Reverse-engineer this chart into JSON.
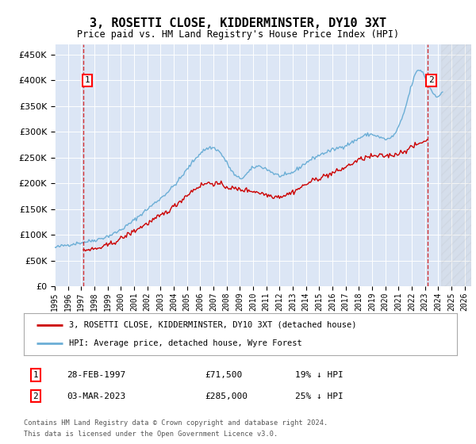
{
  "title": "3, ROSETTI CLOSE, KIDDERMINSTER, DY10 3XT",
  "subtitle": "Price paid vs. HM Land Registry's House Price Index (HPI)",
  "ylim": [
    0,
    470000
  ],
  "yticks": [
    0,
    50000,
    100000,
    150000,
    200000,
    250000,
    300000,
    350000,
    400000,
    450000
  ],
  "xlim_start": 1995.0,
  "xlim_end": 2026.5,
  "background_color": "#dce6f5",
  "hpi_color": "#6baed6",
  "price_color": "#cc0000",
  "dashed_line_color": "#cc0000",
  "transaction1_x": 1997.167,
  "transaction1_y": 71500,
  "transaction1_label": "1",
  "transaction1_date": "28-FEB-1997",
  "transaction1_price": "£71,500",
  "transaction1_hpi": "19% ↓ HPI",
  "transaction2_x": 2023.17,
  "transaction2_y": 285000,
  "transaction2_label": "2",
  "transaction2_date": "03-MAR-2023",
  "transaction2_price": "£285,000",
  "transaction2_hpi": "25% ↓ HPI",
  "legend_line1": "3, ROSETTI CLOSE, KIDDERMINSTER, DY10 3XT (detached house)",
  "legend_line2": "HPI: Average price, detached house, Wyre Forest",
  "footer1": "Contains HM Land Registry data © Crown copyright and database right 2024.",
  "footer2": "This data is licensed under the Open Government Licence v3.0.",
  "future_hatch_start": 2024.25,
  "hpi_anchors_x": [
    1995.0,
    1997.0,
    2000.0,
    2002.0,
    2004.5,
    2007.5,
    2009.0,
    2010.0,
    2012.0,
    2014.0,
    2016.0,
    2017.5,
    2019.0,
    2020.5,
    2021.5,
    2022.5,
    2023.5,
    2024.0,
    2024.3
  ],
  "hpi_anchors_y": [
    75000,
    85000,
    110000,
    150000,
    210000,
    260000,
    210000,
    230000,
    215000,
    240000,
    265000,
    280000,
    295000,
    290000,
    345000,
    420000,
    380000,
    370000,
    375000
  ],
  "price_anchors_x": [
    1997.167,
    1999.0,
    2001.5,
    2004.0,
    2006.5,
    2008.5,
    2010.0,
    2012.0,
    2014.5,
    2016.5,
    2018.5,
    2020.5,
    2022.0,
    2023.17
  ],
  "price_anchors_y": [
    71500,
    80000,
    115000,
    155000,
    200000,
    190000,
    185000,
    175000,
    205000,
    225000,
    250000,
    255000,
    270000,
    285000
  ]
}
